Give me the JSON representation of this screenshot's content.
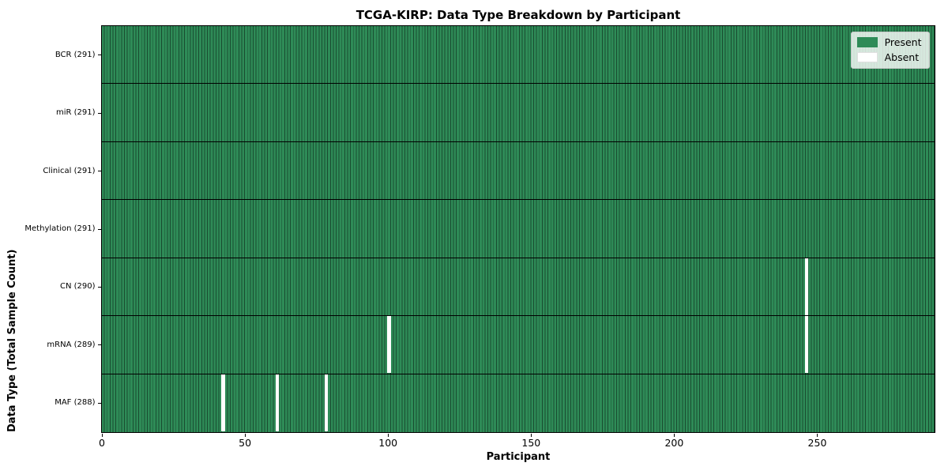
{
  "chart_data": {
    "type": "heatmap",
    "title": "TCGA-KIRP: Data Type Breakdown by Participant",
    "xlabel": "Participant",
    "ylabel": "Data Type (Total Sample Count)",
    "n_participants": 291,
    "x_ticks": [
      0,
      50,
      100,
      150,
      200,
      250
    ],
    "rows": [
      {
        "label": "BCR (291)",
        "data_type": "BCR",
        "present_count": 291,
        "absent_participants": []
      },
      {
        "label": "miR (291)",
        "data_type": "miR",
        "present_count": 291,
        "absent_participants": []
      },
      {
        "label": "Clinical (291)",
        "data_type": "Clinical",
        "present_count": 291,
        "absent_participants": []
      },
      {
        "label": "Methylation (291)",
        "data_type": "Methylation",
        "present_count": 291,
        "absent_participants": []
      },
      {
        "label": "CN (290)",
        "data_type": "CN",
        "present_count": 290,
        "absent_participants": [
          246
        ]
      },
      {
        "label": "mRNA (289)",
        "data_type": "mRNA",
        "present_count": 289,
        "absent_participants": [
          100,
          246
        ]
      },
      {
        "label": "MAF (288)",
        "data_type": "MAF",
        "present_count": 288,
        "absent_participants": [
          42,
          61,
          78
        ]
      }
    ],
    "legend": [
      {
        "label": "Present",
        "color": "#2e8b57"
      },
      {
        "label": "Absent",
        "color": "#ffffff"
      }
    ],
    "legend_position": "upper right",
    "colors": {
      "present": "#2e8b57",
      "absent": "#ffffff",
      "cell_edge": "rgba(0,0,0,0.45)",
      "row_boundary": "#000000",
      "axis": "#000000",
      "background": "#ffffff"
    },
    "grid": false
  }
}
